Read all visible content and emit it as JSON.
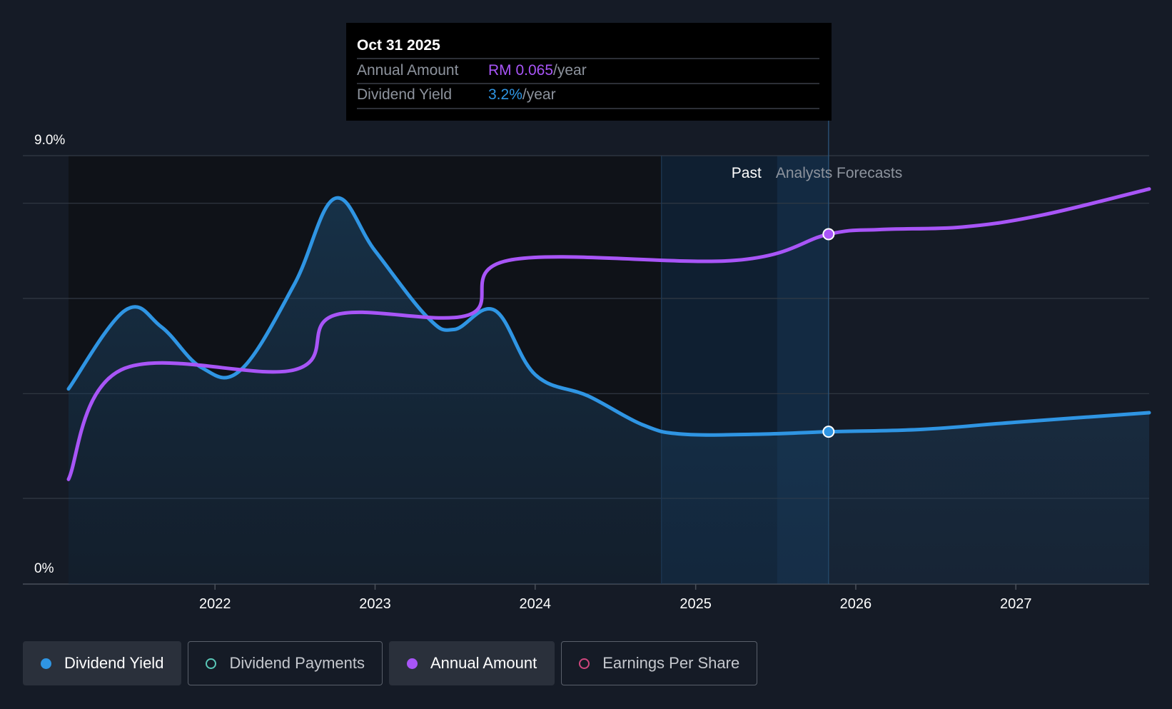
{
  "tooltip": {
    "date": "Oct 31 2025",
    "rows": [
      {
        "label": "Annual Amount",
        "value": "RM 0.065",
        "suffix": "/year",
        "color": "#a855f7"
      },
      {
        "label": "Dividend Yield",
        "value": "3.2%",
        "suffix": "/year",
        "color": "#2f95e3"
      }
    ]
  },
  "regions": {
    "past_label": "Past",
    "forecast_label": "Analysts Forecasts"
  },
  "legend": [
    {
      "label": "Dividend Yield",
      "color": "#2f95e3",
      "active": true,
      "filled": true
    },
    {
      "label": "Dividend Payments",
      "color": "#5ac8b8",
      "active": false,
      "filled": false
    },
    {
      "label": "Annual Amount",
      "color": "#a855f7",
      "active": true,
      "filled": true
    },
    {
      "label": "Earnings Per Share",
      "color": "#d0467e",
      "active": false,
      "filled": false
    }
  ],
  "chart_data": {
    "type": "line",
    "y_tick_labels": [
      "0%",
      "9.0%"
    ],
    "ylim": [
      0,
      9.0
    ],
    "x_tick_labels": [
      "2022",
      "2023",
      "2024",
      "2025",
      "2026",
      "2027"
    ],
    "xlim": [
      "2021-02-01",
      "2027-11-01"
    ],
    "gridlines": [
      0,
      1.8,
      4.0,
      6.0,
      8.0,
      9.0
    ],
    "past_forecast_split": "2025-10-31",
    "highlight_start": "2024-10-15",
    "grid": true,
    "series": [
      {
        "name": "Dividend Yield",
        "color": "#2f95e3",
        "area": true,
        "points": [
          [
            "2021-02-01",
            4.1
          ],
          [
            "2021-06-10",
            5.75
          ],
          [
            "2021-09-01",
            5.4
          ],
          [
            "2021-12-01",
            4.55
          ],
          [
            "2022-03-01",
            4.5
          ],
          [
            "2022-07-01",
            6.3
          ],
          [
            "2022-10-01",
            8.1
          ],
          [
            "2023-01-01",
            7.0
          ],
          [
            "2023-05-01",
            5.6
          ],
          [
            "2023-07-01",
            5.35
          ],
          [
            "2023-10-01",
            5.75
          ],
          [
            "2024-01-01",
            4.4
          ],
          [
            "2024-05-01",
            3.95
          ],
          [
            "2024-09-01",
            3.35
          ],
          [
            "2024-12-01",
            3.15
          ],
          [
            "2025-06-01",
            3.15
          ],
          [
            "2025-10-31",
            3.2
          ],
          [
            "2026-06-01",
            3.25
          ],
          [
            "2027-01-01",
            3.4
          ],
          [
            "2027-11-01",
            3.6
          ]
        ]
      },
      {
        "name": "Annual Amount",
        "color": "#a855f7",
        "area": false,
        "points": [
          [
            "2021-02-01",
            2.2
          ],
          [
            "2021-06-01",
            4.5
          ],
          [
            "2022-07-01",
            4.5
          ],
          [
            "2022-10-01",
            5.65
          ],
          [
            "2023-08-01",
            5.65
          ],
          [
            "2023-11-01",
            6.8
          ],
          [
            "2025-04-01",
            6.8
          ],
          [
            "2025-10-31",
            7.35
          ],
          [
            "2026-03-01",
            7.45
          ],
          [
            "2026-09-01",
            7.5
          ],
          [
            "2027-03-01",
            7.75
          ],
          [
            "2027-11-01",
            8.3
          ]
        ]
      }
    ]
  }
}
